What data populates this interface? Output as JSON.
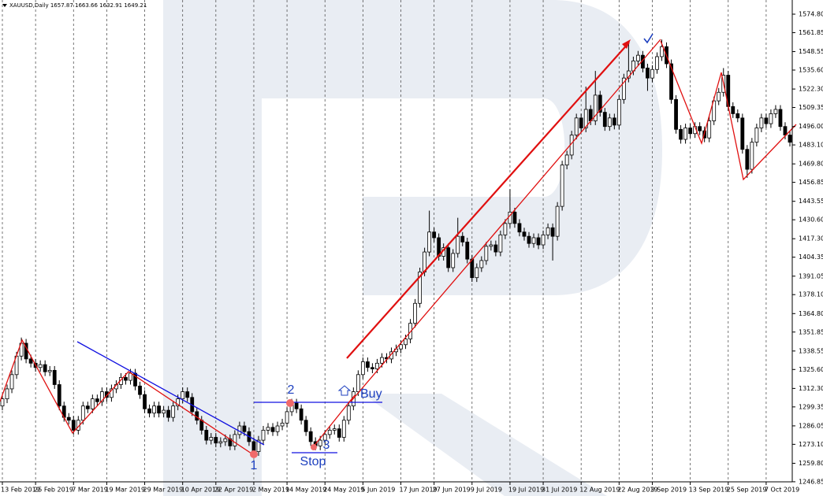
{
  "chart_data": {
    "type": "candlestick",
    "title": "XAUUSD,Daily 1657.87 1663.66 1632.91 1649.21",
    "categories": [
      "13 Feb 2019",
      null,
      null,
      null,
      null,
      null,
      null,
      "25 Feb 2019",
      null,
      null,
      null,
      null,
      null,
      null,
      null,
      "7 Mar 2019",
      null,
      null,
      null,
      null,
      null,
      null,
      "19 Mar 2019",
      null,
      null,
      null,
      null,
      null,
      null,
      null,
      "29 Mar 2019",
      null,
      null,
      null,
      null,
      null,
      null,
      null,
      "10 Apr 2019",
      null,
      null,
      null,
      null,
      null,
      null,
      "22 Apr 2019",
      null,
      null,
      null,
      null,
      null,
      null,
      null,
      "2 May 2019",
      null,
      null,
      null,
      null,
      null,
      null,
      "14 May 2019",
      null,
      null,
      null,
      null,
      null,
      null,
      null,
      "24 May 2019",
      null,
      null,
      null,
      null,
      null,
      null,
      null,
      "5 Jun 2019",
      null,
      null,
      null,
      null,
      null,
      null,
      null,
      "17 Jun 2019",
      null,
      null,
      null,
      null,
      null,
      null,
      "27 Jun 2019",
      null,
      null,
      null,
      null,
      null,
      null,
      null,
      "9 Jul 2019",
      null,
      null,
      null,
      null,
      null,
      null,
      null,
      "19 Jul 2019",
      null,
      null,
      null,
      null,
      null,
      null,
      "31 Jul 2019",
      null,
      null,
      null,
      null,
      null,
      null,
      null,
      "12 Aug 2019",
      null,
      null,
      null,
      null,
      null,
      null,
      null,
      "22 Aug 2019",
      null,
      null,
      null,
      null,
      null,
      null,
      "3 Sep 2019",
      null,
      null,
      null,
      null,
      null,
      null,
      null,
      "13 Sep 2019",
      null,
      null,
      null,
      null,
      null,
      null,
      null,
      "25 Sep 2019",
      null,
      null,
      null,
      null,
      null,
      null,
      null,
      "7 Oct 2019",
      null,
      null,
      null,
      null,
      null
    ],
    "open": [
      1300,
      1305,
      1312,
      1322,
      1335,
      1344,
      1333,
      1330,
      1327,
      1329,
      1324,
      1325,
      1315,
      1300,
      1292,
      1290,
      1283,
      1290,
      1300,
      1298,
      1305,
      1303,
      1310,
      1306,
      1312,
      1315,
      1320,
      1318,
      1323,
      1314,
      1308,
      1298,
      1295,
      1300,
      1295,
      1297,
      1292,
      1300,
      1305,
      1310,
      1306,
      1296,
      1290,
      1283,
      1276,
      1278,
      1274,
      1275,
      1277,
      1272,
      1280,
      1286,
      1282,
      1275,
      1268,
      1276,
      1283,
      1285,
      1282,
      1286,
      1288,
      1296,
      1302,
      1298,
      1290,
      1282,
      1275,
      1272,
      1276,
      1280,
      1283,
      1284,
      1278,
      1290,
      1300,
      1310,
      1322,
      1331,
      1327,
      1326,
      1330,
      1334,
      1333,
      1338,
      1340,
      1343,
      1347,
      1358,
      1372,
      1394,
      1408,
      1422,
      1418,
      1405,
      1411,
      1397,
      1407,
      1419,
      1415,
      1403,
      1390,
      1397,
      1402,
      1412,
      1413,
      1408,
      1420,
      1428,
      1436,
      1428,
      1422,
      1419,
      1414,
      1418,
      1413,
      1420,
      1425,
      1419,
      1440,
      1469,
      1476,
      1490,
      1502,
      1495,
      1508,
      1500,
      1518,
      1506,
      1496,
      1502,
      1497,
      1515,
      1530,
      1535,
      1542,
      1546,
      1537,
      1530,
      1536,
      1545,
      1552,
      1540,
      1515,
      1494,
      1487,
      1495,
      1491,
      1496,
      1493,
      1488,
      1500,
      1514,
      1520,
      1532,
      1510,
      1505,
      1502,
      1480,
      1466,
      1485,
      1495,
      1502,
      1498,
      1505,
      1508,
      1496,
      1490
    ],
    "high": [
      1308,
      1315,
      1325,
      1338,
      1348,
      1347,
      1336,
      1333,
      1332,
      1332,
      1328,
      1328,
      1318,
      1303,
      1295,
      1293,
      1293,
      1303,
      1303,
      1308,
      1308,
      1313,
      1313,
      1315,
      1318,
      1323,
      1323,
      1326,
      1326,
      1317,
      1311,
      1301,
      1303,
      1303,
      1300,
      1300,
      1303,
      1308,
      1313,
      1313,
      1309,
      1299,
      1293,
      1286,
      1281,
      1281,
      1278,
      1280,
      1280,
      1283,
      1289,
      1289,
      1285,
      1278,
      1279,
      1286,
      1288,
      1288,
      1289,
      1291,
      1299,
      1305,
      1305,
      1301,
      1293,
      1285,
      1278,
      1279,
      1283,
      1286,
      1287,
      1287,
      1293,
      1303,
      1313,
      1325,
      1334,
      1334,
      1330,
      1333,
      1337,
      1337,
      1341,
      1343,
      1346,
      1350,
      1361,
      1375,
      1397,
      1411,
      1437,
      1425,
      1421,
      1414,
      1414,
      1410,
      1432,
      1422,
      1418,
      1406,
      1400,
      1405,
      1415,
      1416,
      1416,
      1423,
      1431,
      1452,
      1439,
      1431,
      1425,
      1422,
      1421,
      1421,
      1423,
      1428,
      1428,
      1443,
      1472,
      1479,
      1493,
      1505,
      1505,
      1524,
      1511,
      1535,
      1521,
      1509,
      1505,
      1505,
      1518,
      1533,
      1555,
      1545,
      1549,
      1549,
      1540,
      1539,
      1548,
      1557,
      1555,
      1543,
      1518,
      1497,
      1498,
      1498,
      1499,
      1499,
      1496,
      1503,
      1517,
      1523,
      1537,
      1535,
      1513,
      1508,
      1505,
      1483,
      1488,
      1498,
      1505,
      1505,
      1508,
      1511,
      1511,
      1499,
      1493
    ],
    "low": [
      1297,
      1302,
      1309,
      1319,
      1332,
      1330,
      1327,
      1324,
      1324,
      1321,
      1321,
      1312,
      1297,
      1289,
      1287,
      1280,
      1280,
      1287,
      1295,
      1295,
      1300,
      1300,
      1303,
      1303,
      1309,
      1312,
      1315,
      1315,
      1311,
      1305,
      1295,
      1292,
      1292,
      1292,
      1292,
      1289,
      1289,
      1297,
      1302,
      1303,
      1293,
      1287,
      1280,
      1273,
      1273,
      1271,
      1271,
      1272,
      1269,
      1269,
      1277,
      1279,
      1272,
      1265,
      1265,
      1273,
      1280,
      1279,
      1279,
      1283,
      1285,
      1293,
      1295,
      1287,
      1279,
      1272,
      1269,
      1269,
      1273,
      1277,
      1280,
      1275,
      1275,
      1287,
      1297,
      1307,
      1319,
      1324,
      1323,
      1323,
      1327,
      1330,
      1330,
      1335,
      1337,
      1340,
      1344,
      1355,
      1369,
      1391,
      1405,
      1415,
      1402,
      1402,
      1394,
      1394,
      1404,
      1412,
      1400,
      1387,
      1387,
      1394,
      1399,
      1409,
      1405,
      1405,
      1417,
      1425,
      1425,
      1419,
      1416,
      1411,
      1411,
      1410,
      1410,
      1417,
      1402,
      1416,
      1437,
      1466,
      1473,
      1487,
      1492,
      1492,
      1497,
      1497,
      1503,
      1493,
      1493,
      1494,
      1494,
      1512,
      1527,
      1532,
      1539,
      1534,
      1521,
      1527,
      1533,
      1542,
      1537,
      1512,
      1491,
      1484,
      1484,
      1488,
      1488,
      1490,
      1485,
      1485,
      1497,
      1511,
      1517,
      1507,
      1502,
      1499,
      1477,
      1460,
      1463,
      1482,
      1492,
      1495,
      1495,
      1502,
      1493,
      1487,
      1482
    ],
    "close": [
      1305,
      1312,
      1322,
      1335,
      1344,
      1333,
      1330,
      1327,
      1329,
      1324,
      1325,
      1315,
      1300,
      1292,
      1290,
      1283,
      1290,
      1300,
      1298,
      1305,
      1303,
      1310,
      1306,
      1312,
      1315,
      1320,
      1318,
      1323,
      1314,
      1308,
      1298,
      1295,
      1300,
      1295,
      1297,
      1292,
      1300,
      1305,
      1310,
      1306,
      1296,
      1290,
      1283,
      1276,
      1278,
      1274,
      1275,
      1277,
      1272,
      1280,
      1286,
      1282,
      1275,
      1268,
      1276,
      1283,
      1285,
      1282,
      1286,
      1288,
      1296,
      1302,
      1298,
      1290,
      1282,
      1275,
      1272,
      1276,
      1280,
      1283,
      1284,
      1278,
      1290,
      1300,
      1310,
      1322,
      1331,
      1327,
      1326,
      1330,
      1334,
      1333,
      1338,
      1340,
      1343,
      1347,
      1358,
      1372,
      1394,
      1408,
      1422,
      1418,
      1405,
      1411,
      1397,
      1407,
      1419,
      1415,
      1403,
      1390,
      1397,
      1402,
      1412,
      1413,
      1408,
      1420,
      1428,
      1436,
      1428,
      1422,
      1419,
      1414,
      1418,
      1413,
      1420,
      1425,
      1419,
      1440,
      1469,
      1476,
      1490,
      1502,
      1495,
      1508,
      1500,
      1518,
      1506,
      1496,
      1502,
      1497,
      1515,
      1530,
      1535,
      1542,
      1546,
      1537,
      1530,
      1536,
      1545,
      1552,
      1540,
      1515,
      1494,
      1487,
      1495,
      1491,
      1496,
      1493,
      1488,
      1500,
      1514,
      1520,
      1532,
      1510,
      1505,
      1502,
      1480,
      1466,
      1485,
      1495,
      1502,
      1498,
      1505,
      1508,
      1496,
      1490,
      1485
    ],
    "up_color": "#ffffff",
    "down_color": "#000000",
    "ylim": [
      1246.8,
      1584.74
    ],
    "yticks": [
      {
        "value": 1574.8,
        "label": "1574.80"
      },
      1561.85,
      1548.55,
      {
        "value": 1535.6,
        "label": "1535.60"
      },
      {
        "value": 1522.3,
        "label": "1522.30"
      },
      1509.35,
      {
        "value": 1496,
        "label": "1496.00"
      },
      {
        "value": 1483.1,
        "label": "1483.10"
      },
      {
        "value": 1469.8,
        "label": "1469.80"
      },
      1456.85,
      1443.55,
      {
        "value": 1430.6,
        "label": "1430.60"
      },
      {
        "value": 1417.3,
        "label": "1417.30"
      },
      1404.35,
      1391.05,
      {
        "value": 1378.1,
        "label": "1378.10"
      },
      {
        "value": 1364.8,
        "label": "1364.80"
      },
      1351.85,
      1338.55,
      {
        "value": 1325.6,
        "label": "1325.60"
      },
      {
        "value": 1312.3,
        "label": "1312.30"
      },
      1299.35,
      1286.05,
      {
        "value": 1273.1,
        "label": "1273.10"
      },
      {
        "value": 1259.8,
        "label": "1259.80"
      },
      1246.85
    ],
    "grid": true,
    "annotations": [
      "1",
      "2",
      "3",
      "Buy",
      "Stop"
    ]
  }
}
